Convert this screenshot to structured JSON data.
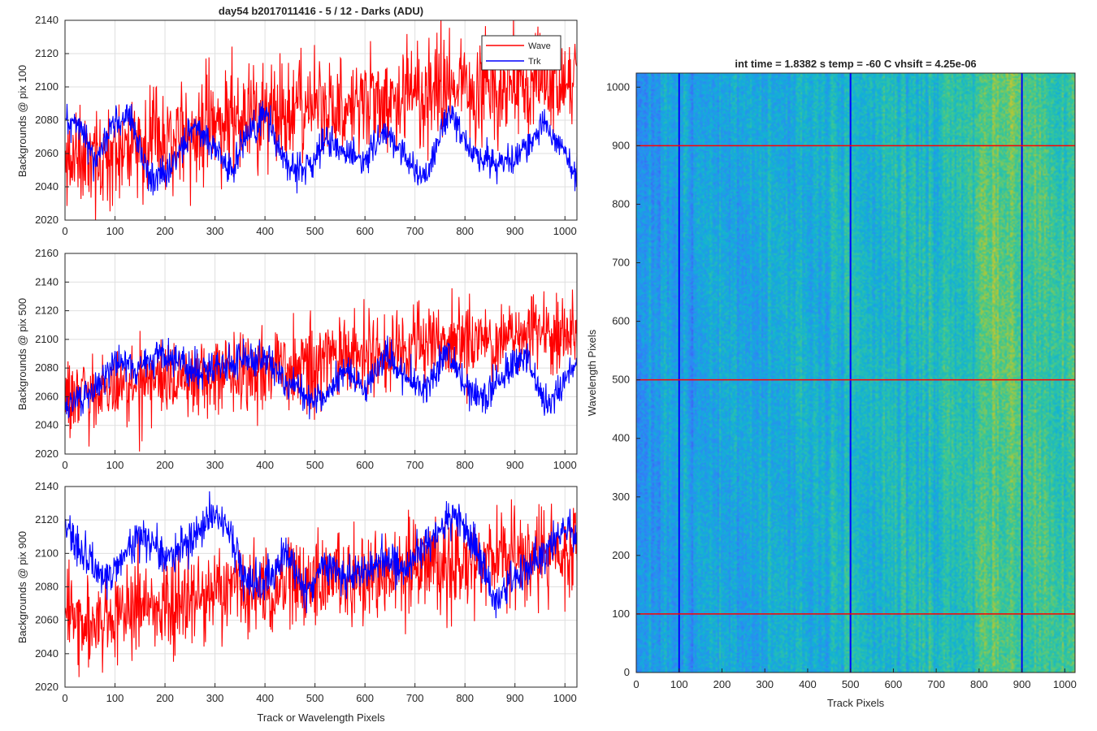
{
  "chart_data": [
    {
      "type": "line",
      "title": "day54 b2017011416 - 5 / 12 - Darks (ADU)",
      "ylabel": "Backgrounds @ pix 100",
      "xlabel": "",
      "xlim": [
        0,
        1024
      ],
      "ylim": [
        2020,
        2140
      ],
      "xticks": [
        0,
        100,
        200,
        300,
        400,
        500,
        600,
        700,
        800,
        900,
        1000
      ],
      "yticks": [
        2020,
        2040,
        2060,
        2080,
        2100,
        2120,
        2140
      ],
      "grid": true,
      "legend": {
        "placement": "top-right",
        "entries": [
          "Wave",
          "Trk"
        ]
      },
      "series": [
        {
          "name": "Wave",
          "color": "#ff0000",
          "n": 1024,
          "trend": [
            [
              0,
              2055
            ],
            [
              100,
              2065
            ],
            [
              200,
              2068
            ],
            [
              300,
              2078
            ],
            [
              400,
              2082
            ],
            [
              500,
              2088
            ],
            [
              600,
              2092
            ],
            [
              700,
              2095
            ],
            [
              800,
              2098
            ],
            [
              900,
              2100
            ],
            [
              1024,
              2102
            ]
          ],
          "noise": 16,
          "seed": 11
        },
        {
          "name": "Trk",
          "color": "#0000ff",
          "n": 1024,
          "trend": [
            [
              0,
              2082
            ],
            [
              30,
              2078
            ],
            [
              60,
              2055
            ],
            [
              100,
              2080
            ],
            [
              130,
              2083
            ],
            [
              170,
              2045
            ],
            [
              210,
              2050
            ],
            [
              250,
              2075
            ],
            [
              290,
              2070
            ],
            [
              330,
              2050
            ],
            [
              360,
              2068
            ],
            [
              400,
              2085
            ],
            [
              440,
              2055
            ],
            [
              480,
              2050
            ],
            [
              520,
              2068
            ],
            [
              560,
              2062
            ],
            [
              600,
              2055
            ],
            [
              640,
              2075
            ],
            [
              680,
              2058
            ],
            [
              720,
              2045
            ],
            [
              770,
              2088
            ],
            [
              810,
              2060
            ],
            [
              850,
              2055
            ],
            [
              900,
              2055
            ],
            [
              960,
              2078
            ],
            [
              1000,
              2060
            ],
            [
              1024,
              2045
            ]
          ],
          "noise": 5,
          "seed": 12
        }
      ]
    },
    {
      "type": "line",
      "title": "",
      "ylabel": "Backgrounds @ pix 500",
      "xlabel": "",
      "xlim": [
        0,
        1024
      ],
      "ylim": [
        2020,
        2160
      ],
      "xticks": [
        0,
        100,
        200,
        300,
        400,
        500,
        600,
        700,
        800,
        900,
        1000
      ],
      "yticks": [
        2020,
        2040,
        2060,
        2080,
        2100,
        2120,
        2140,
        2160
      ],
      "grid": true,
      "series": [
        {
          "name": "Wave",
          "color": "#ff0000",
          "n": 1024,
          "trend": [
            [
              0,
              2060
            ],
            [
              100,
              2066
            ],
            [
              200,
              2070
            ],
            [
              300,
              2074
            ],
            [
              400,
              2078
            ],
            [
              500,
              2084
            ],
            [
              600,
              2090
            ],
            [
              700,
              2096
            ],
            [
              800,
              2102
            ],
            [
              900,
              2104
            ],
            [
              1024,
              2102
            ]
          ],
          "noise": 14,
          "seed": 21
        },
        {
          "name": "Trk",
          "color": "#0000ff",
          "n": 1024,
          "trend": [
            [
              0,
              2058
            ],
            [
              50,
              2060
            ],
            [
              100,
              2085
            ],
            [
              150,
              2078
            ],
            [
              200,
              2092
            ],
            [
              250,
              2078
            ],
            [
              300,
              2080
            ],
            [
              350,
              2085
            ],
            [
              400,
              2088
            ],
            [
              440,
              2072
            ],
            [
              480,
              2060
            ],
            [
              520,
              2058
            ],
            [
              560,
              2080
            ],
            [
              600,
              2065
            ],
            [
              640,
              2090
            ],
            [
              680,
              2075
            ],
            [
              720,
              2063
            ],
            [
              760,
              2092
            ],
            [
              800,
              2068
            ],
            [
              840,
              2058
            ],
            [
              880,
              2078
            ],
            [
              920,
              2088
            ],
            [
              970,
              2050
            ],
            [
              1000,
              2075
            ],
            [
              1024,
              2080
            ]
          ],
          "noise": 6,
          "seed": 22
        }
      ]
    },
    {
      "type": "line",
      "title": "",
      "ylabel": "Backgrounds @ pix 900",
      "xlabel": "Track or Wavelength Pixels",
      "xlim": [
        0,
        1024
      ],
      "ylim": [
        2020,
        2140
      ],
      "xticks": [
        0,
        100,
        200,
        300,
        400,
        500,
        600,
        700,
        800,
        900,
        1000
      ],
      "yticks": [
        2020,
        2040,
        2060,
        2080,
        2100,
        2120,
        2140
      ],
      "grid": true,
      "series": [
        {
          "name": "Wave",
          "color": "#ff0000",
          "n": 1024,
          "trend": [
            [
              0,
              2060
            ],
            [
              100,
              2062
            ],
            [
              200,
              2068
            ],
            [
              300,
              2075
            ],
            [
              400,
              2080
            ],
            [
              500,
              2084
            ],
            [
              600,
              2088
            ],
            [
              700,
              2092
            ],
            [
              800,
              2096
            ],
            [
              900,
              2098
            ],
            [
              1024,
              2100
            ]
          ],
          "noise": 14,
          "seed": 31
        },
        {
          "name": "Trk",
          "color": "#0000ff",
          "n": 1024,
          "trend": [
            [
              0,
              2118
            ],
            [
              40,
              2098
            ],
            [
              80,
              2085
            ],
            [
              120,
              2100
            ],
            [
              160,
              2112
            ],
            [
              200,
              2095
            ],
            [
              250,
              2108
            ],
            [
              300,
              2125
            ],
            [
              330,
              2115
            ],
            [
              360,
              2085
            ],
            [
              400,
              2082
            ],
            [
              440,
              2100
            ],
            [
              480,
              2080
            ],
            [
              520,
              2095
            ],
            [
              560,
              2085
            ],
            [
              600,
              2088
            ],
            [
              640,
              2098
            ],
            [
              680,
              2092
            ],
            [
              720,
              2105
            ],
            [
              780,
              2125
            ],
            [
              820,
              2105
            ],
            [
              860,
              2070
            ],
            [
              900,
              2085
            ],
            [
              950,
              2098
            ],
            [
              1000,
              2115
            ],
            [
              1024,
              2112
            ]
          ],
          "noise": 6,
          "seed": 32
        }
      ]
    },
    {
      "type": "heatmap",
      "title": "int time = 1.8382 s    temp = -60 C    vhsift = 4.25e-06",
      "xlabel": "Track Pixels",
      "ylabel": "Wavelength Pixels",
      "xlim": [
        0,
        1024
      ],
      "ylim": [
        0,
        1024
      ],
      "xticks": [
        0,
        100,
        200,
        300,
        400,
        500,
        600,
        700,
        800,
        900,
        1000
      ],
      "yticks": [
        0,
        100,
        200,
        300,
        400,
        500,
        600,
        700,
        800,
        900,
        1000
      ],
      "colormap": "parula",
      "color_range": [
        2020,
        2140
      ],
      "vertical_markers": {
        "color": "#0000ff",
        "x": [
          100,
          500,
          900
        ]
      },
      "horizontal_markers": {
        "color": "#ff0000",
        "y": [
          100,
          500,
          900
        ]
      }
    }
  ]
}
